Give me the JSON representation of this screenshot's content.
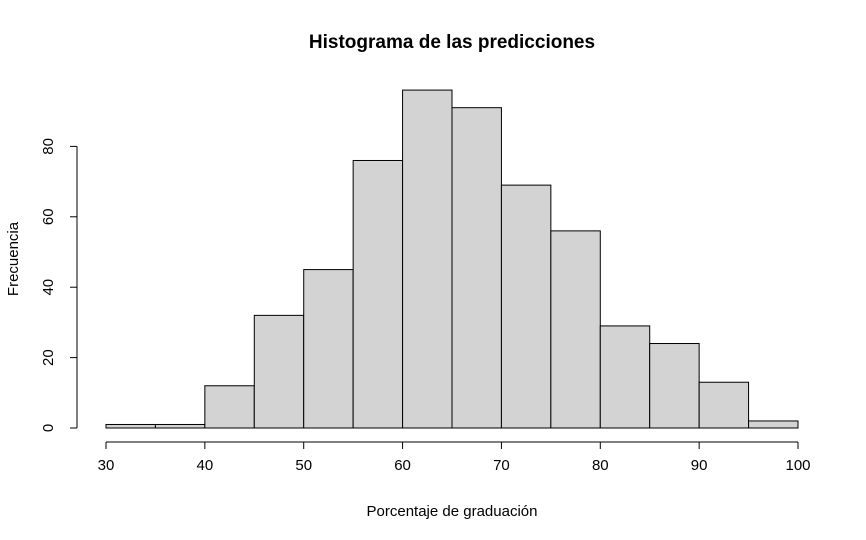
{
  "chart_data": {
    "type": "bar",
    "title": "Histograma de las predicciones",
    "xlabel": "Porcentaje de graduación",
    "ylabel": "Frecuencia",
    "bins": [
      {
        "from": 30,
        "to": 35,
        "count": 1
      },
      {
        "from": 35,
        "to": 40,
        "count": 1
      },
      {
        "from": 40,
        "to": 45,
        "count": 12
      },
      {
        "from": 45,
        "to": 50,
        "count": 32
      },
      {
        "from": 50,
        "to": 55,
        "count": 45
      },
      {
        "from": 55,
        "to": 60,
        "count": 76
      },
      {
        "from": 60,
        "to": 65,
        "count": 96
      },
      {
        "from": 65,
        "to": 70,
        "count": 91
      },
      {
        "from": 70,
        "to": 75,
        "count": 69
      },
      {
        "from": 75,
        "to": 80,
        "count": 56
      },
      {
        "from": 80,
        "to": 85,
        "count": 29
      },
      {
        "from": 85,
        "to": 90,
        "count": 24
      },
      {
        "from": 90,
        "to": 95,
        "count": 13
      },
      {
        "from": 95,
        "to": 100,
        "count": 2
      }
    ],
    "x_ticks": [
      30,
      40,
      50,
      60,
      70,
      80,
      90,
      100
    ],
    "y_ticks": [
      0,
      20,
      40,
      60,
      80
    ],
    "xlim": [
      30,
      100
    ],
    "ylim": [
      0,
      100
    ],
    "bar_color": "#d3d3d3",
    "grid": false
  }
}
